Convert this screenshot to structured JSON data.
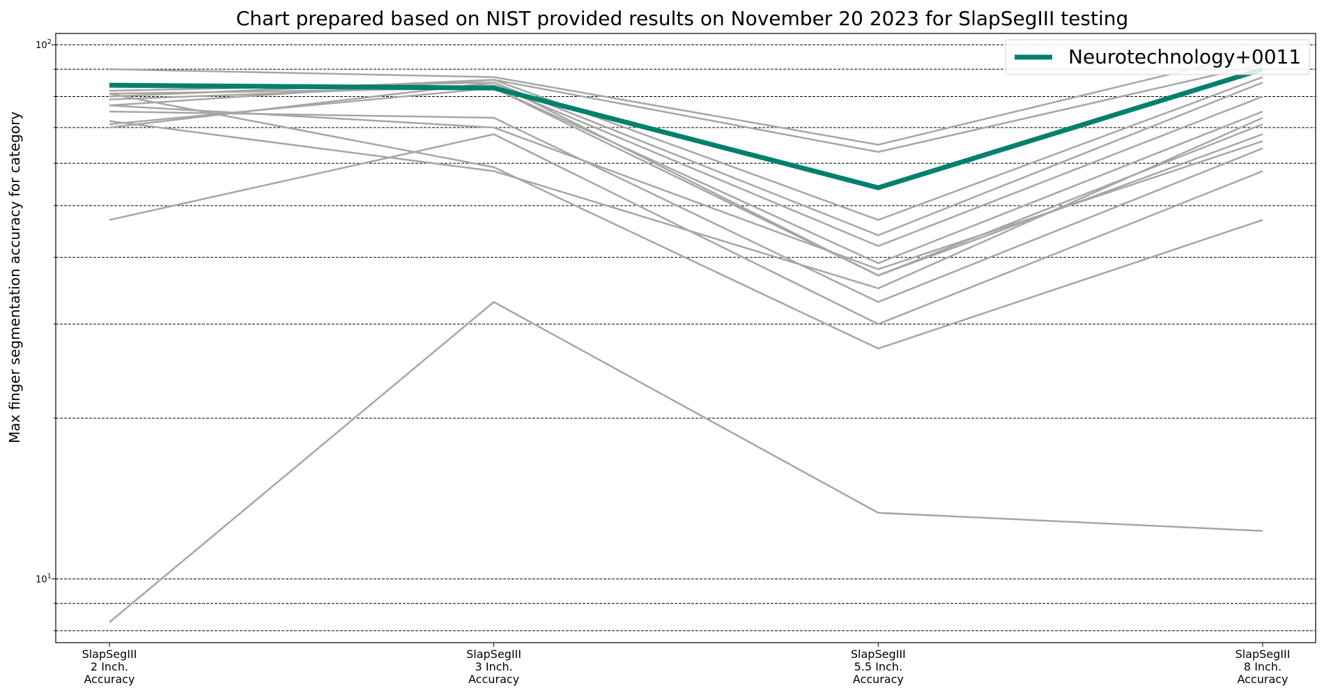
{
  "chart_data": {
    "type": "line",
    "title": "Chart prepared based on NIST provided results on November 20 2023 for SlapSegIII testing",
    "ylabel": "Max finger segmentation accuracy for category",
    "xlabel": "",
    "yscale": "log",
    "ylim": [
      7.6,
      105
    ],
    "categories": [
      [
        "SlapSegIII",
        "2 Inch.",
        "Accuracy"
      ],
      [
        "SlapSegIII",
        "3 Inch.",
        "Accuracy"
      ],
      [
        "SlapSegIII",
        "5.5 Inch.",
        "Accuracy"
      ],
      [
        "SlapSegIII",
        "8 Inch.",
        "Accuracy"
      ]
    ],
    "y_tick_labels": [
      {
        "value": 10,
        "base": "10",
        "exp": "1"
      },
      {
        "value": 100,
        "base": "10",
        "exp": "2"
      }
    ],
    "grid_values": [
      8,
      9,
      10,
      20,
      30,
      40,
      50,
      60,
      70,
      80,
      90,
      100
    ],
    "grid": true,
    "legend_placement": "top-right",
    "highlight_series": {
      "name": "Neurotechnology+0011",
      "color": "#00806e",
      "values": [
        84,
        83,
        54,
        90
      ]
    },
    "other_series_color": "#a6a6a6",
    "series": [
      {
        "values": [
          90,
          87,
          65,
          97
        ]
      },
      {
        "values": [
          80,
          86,
          63,
          92
        ]
      },
      {
        "values": [
          77,
          86,
          47,
          87
        ]
      },
      {
        "values": [
          82,
          85,
          44,
          85
        ]
      },
      {
        "values": [
          79,
          84,
          42,
          80
        ]
      },
      {
        "values": [
          81,
          83,
          39,
          75
        ]
      },
      {
        "values": [
          71,
          83,
          37,
          71
        ]
      },
      {
        "values": [
          70,
          85,
          37,
          68
        ]
      },
      {
        "values": [
          77,
          70,
          38,
          66
        ]
      },
      {
        "values": [
          72,
          58,
          35,
          73
        ]
      },
      {
        "values": [
          75,
          73,
          33,
          64
        ]
      },
      {
        "values": [
          47,
          68,
          30,
          58
        ]
      },
      {
        "values": [
          81,
          59,
          27,
          47
        ]
      },
      {
        "values": [
          8.3,
          33,
          13.3,
          12.3
        ]
      }
    ]
  }
}
